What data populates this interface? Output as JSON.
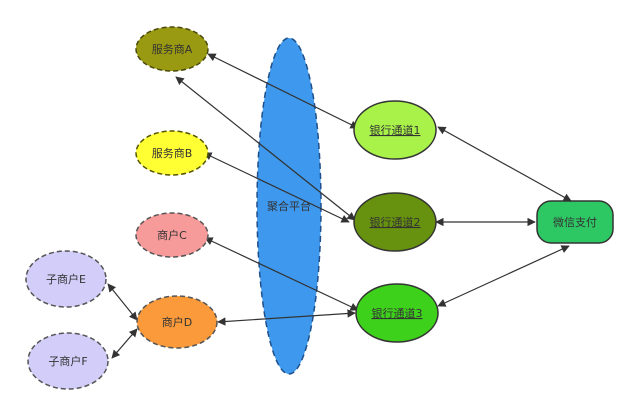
{
  "colors": {
    "background": "#ffffff",
    "edge": "#333333",
    "text": "#333333",
    "provider_a": "#9a9a12",
    "provider_b": "#ffff33",
    "merchant_c": "#f79a9a",
    "merchant_d": "#fb9a3a",
    "sub_merchant": "#d2cdf9",
    "platform": "#3e99ee",
    "bank_1": "#a9f24a",
    "bank_2": "#67920f",
    "bank_3": "#3ed11c",
    "wechat": "#2dc864"
  },
  "nodes": {
    "provider_a": "服务商A",
    "provider_b": "服务商B",
    "merchant_c": "商户C",
    "merchant_d": "商户D",
    "sub_e": "子商户E",
    "sub_f": "子商户F",
    "platform": "聚合平台",
    "bank_1": "银行通道1",
    "bank_2": "银行通道2",
    "bank_3": "银行通道3",
    "wechat": "微信支付"
  }
}
